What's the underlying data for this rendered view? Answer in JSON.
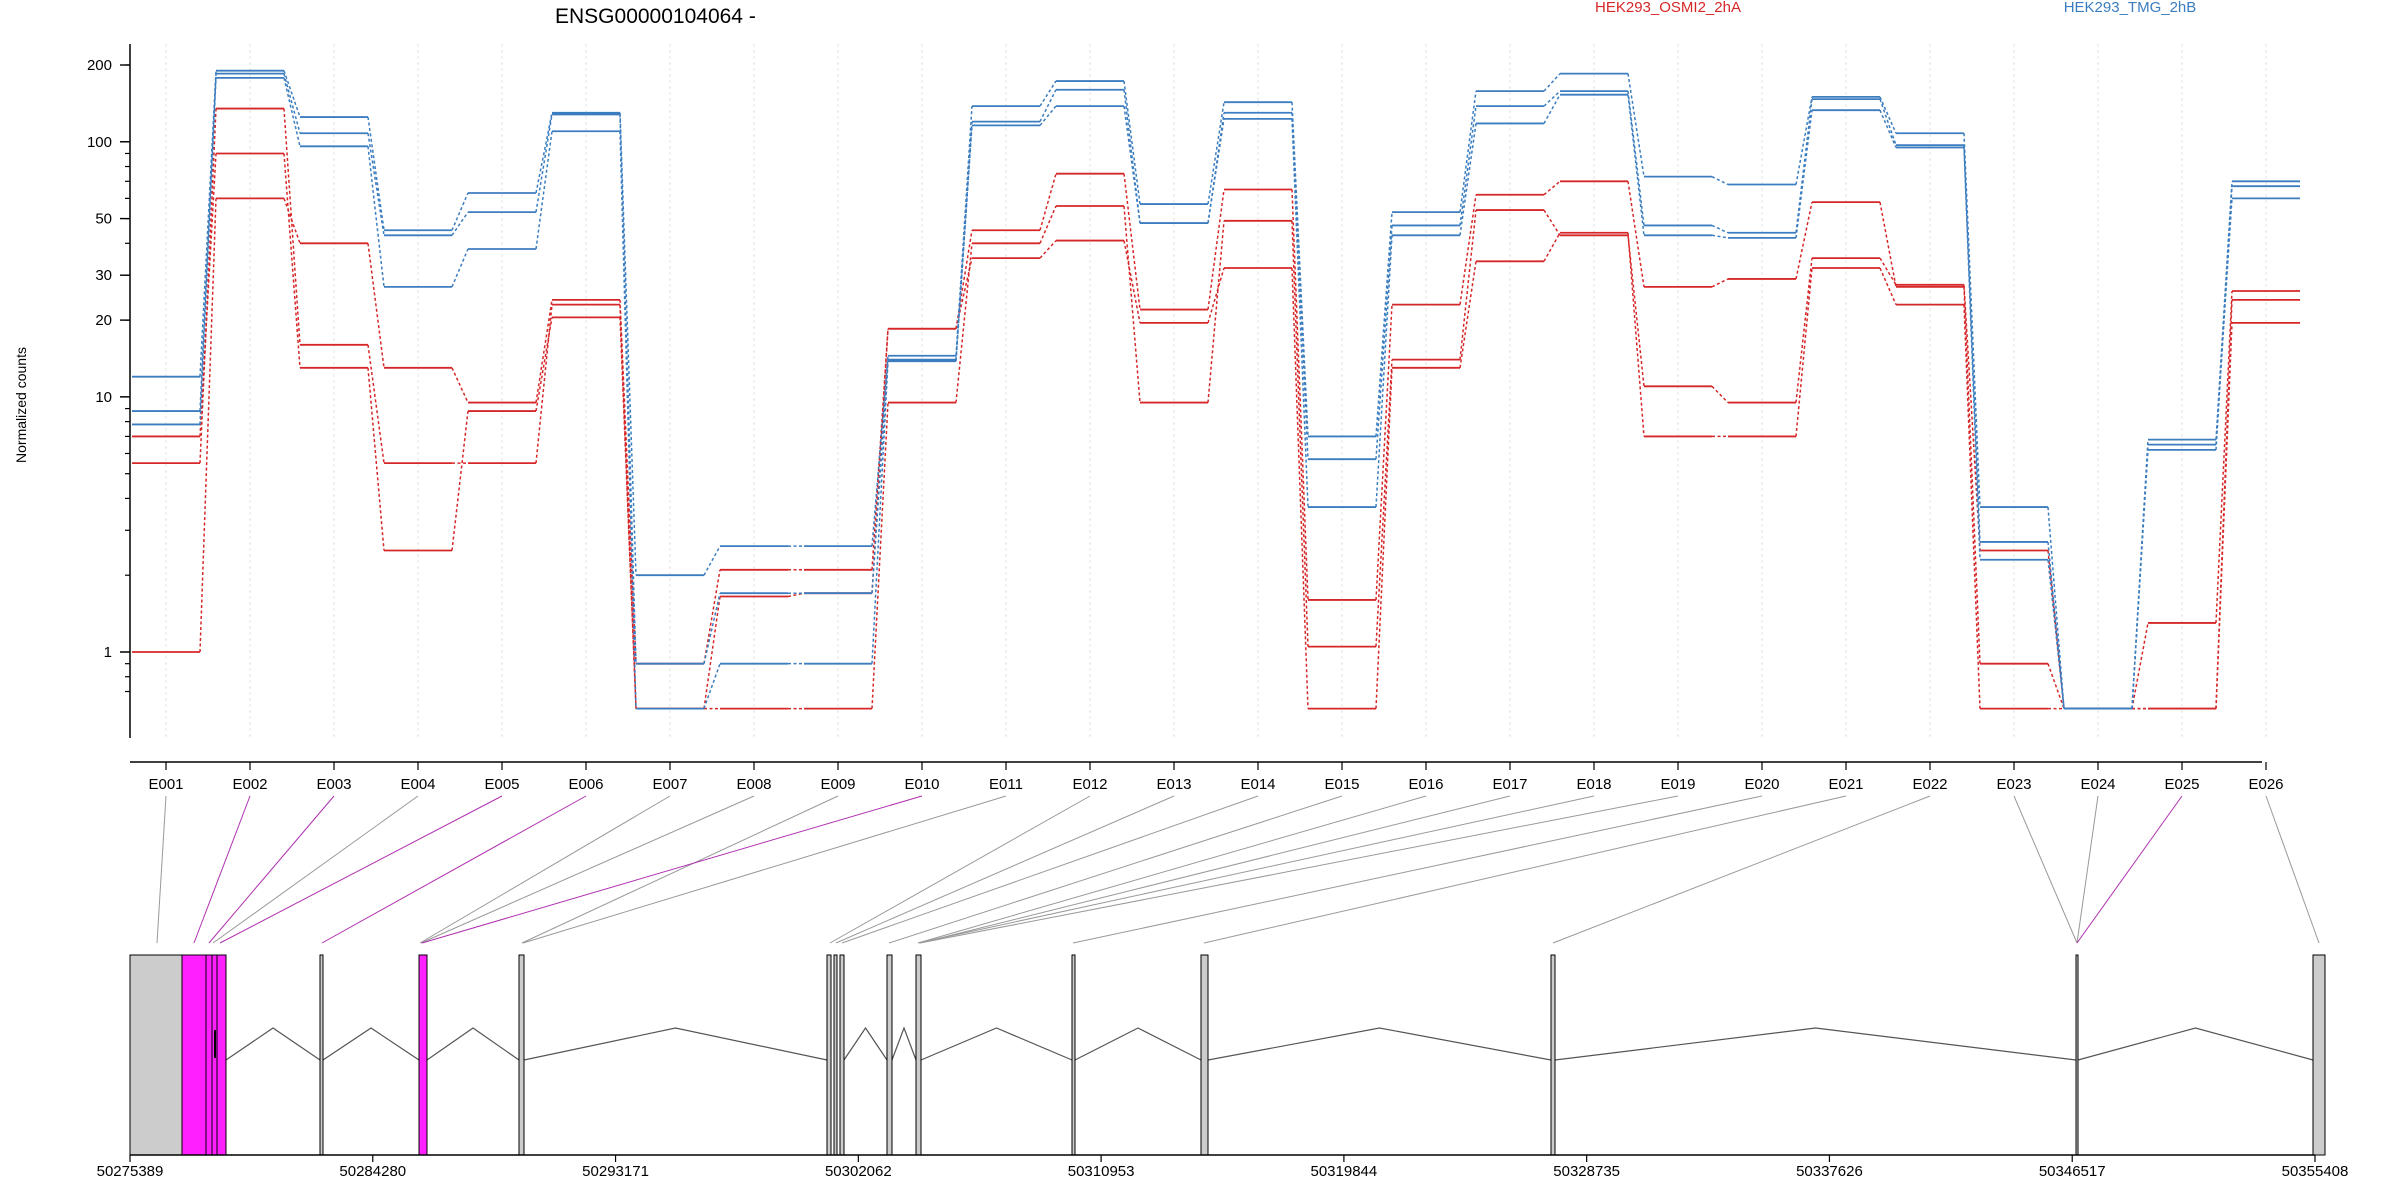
{
  "chart_data": {
    "type": "line",
    "title": "ENSG00000104064 -",
    "xlabel": "",
    "ylabel": "Normalized counts",
    "y_scale": "log",
    "ylim": [
      0.6,
      230
    ],
    "y_ticks": [
      {
        "value": 1,
        "label": "1"
      },
      {
        "value": 10,
        "label": "10"
      },
      {
        "value": 20,
        "label": "20"
      },
      {
        "value": 30,
        "label": "30"
      },
      {
        "value": 50,
        "label": "50"
      },
      {
        "value": 100,
        "label": "100"
      },
      {
        "value": 200,
        "label": "200"
      }
    ],
    "categories": [
      "E001",
      "E002",
      "E003",
      "E004",
      "E005",
      "E006",
      "E007",
      "E008",
      "E009",
      "E010",
      "E011",
      "E012",
      "E013",
      "E014",
      "E015",
      "E016",
      "E017",
      "E018",
      "E019",
      "E020",
      "E021",
      "E022",
      "E023",
      "E024",
      "E025",
      "E026"
    ],
    "grid": true,
    "legend_position": "top",
    "legend": [
      {
        "name": "HEK293_OSMI2_2hA",
        "color": "#d62728"
      },
      {
        "name": "HEK293_TMG_2hB",
        "color": "#3b7dbf"
      }
    ],
    "series": [
      {
        "group": "HEK293_OSMI2_2hA",
        "color": "#d62728",
        "values": [
          1.0,
          60,
          40,
          13,
          9.5,
          24,
          0.9,
          2.1,
          2.1,
          18.5,
          45,
          75,
          22,
          65,
          1.6,
          23,
          62,
          70,
          27,
          29,
          58,
          27,
          0.9,
          0.6,
          1.3,
          26
        ]
      },
      {
        "group": "HEK293_OSMI2_2hA",
        "color": "#d62728",
        "values": [
          5.5,
          135,
          16,
          5.5,
          5.5,
          23,
          0.6,
          0.6,
          0.6,
          9.5,
          40,
          56,
          9.5,
          49,
          1.05,
          14,
          54,
          43,
          11,
          9.5,
          35,
          27.5,
          2.5,
          0.6,
          0.6,
          24
        ]
      },
      {
        "group": "HEK293_OSMI2_2hA",
        "color": "#d62728",
        "values": [
          7.0,
          90,
          13,
          2.5,
          8.8,
          20.5,
          0.6,
          1.65,
          1.7,
          18.5,
          35,
          41,
          19.5,
          32,
          0.6,
          13,
          34,
          44,
          7.0,
          7.0,
          32,
          23,
          0.6,
          0.6,
          0.6,
          19.5
        ]
      },
      {
        "group": "HEK293_TMG_2hB",
        "color": "#3b7dbf",
        "values": [
          12,
          190,
          125,
          45,
          63,
          130,
          2.0,
          2.6,
          2.6,
          14.5,
          138,
          173,
          57,
          143,
          7.0,
          53,
          158,
          185,
          73,
          68,
          150,
          108,
          3.7,
          0.6,
          6.8,
          70
        ]
      },
      {
        "group": "HEK293_TMG_2hB",
        "color": "#3b7dbf",
        "values": [
          8.8,
          185,
          108,
          43,
          53,
          128,
          0.9,
          1.7,
          1.7,
          14,
          120,
          160,
          48,
          130,
          5.7,
          47,
          138,
          158,
          47,
          44,
          147,
          97,
          2.7,
          0.6,
          6.2,
          67
        ]
      },
      {
        "group": "HEK293_TMG_2hB",
        "color": "#3b7dbf",
        "values": [
          7.8,
          178,
          96,
          27,
          38,
          110,
          0.6,
          0.9,
          0.9,
          13.8,
          116,
          138,
          48,
          123,
          3.7,
          43,
          118,
          153,
          43,
          42,
          133,
          95,
          2.3,
          0.6,
          6.5,
          60
        ]
      }
    ],
    "genomic_axis": {
      "tick_labels": [
        "50275389",
        "50284280",
        "50293171",
        "50302062",
        "50310953",
        "50319844",
        "50328735",
        "50337626",
        "50346517",
        "50355408"
      ]
    },
    "exon_colors": {
      "default": "#cccccc",
      "highlight": "#ff1fff",
      "outline": "#000000",
      "connector": "#999999",
      "connector_highlight": "#b030b0"
    },
    "highlighted_exons": [
      "E002",
      "E003",
      "E005",
      "E006",
      "E010",
      "E025"
    ]
  }
}
